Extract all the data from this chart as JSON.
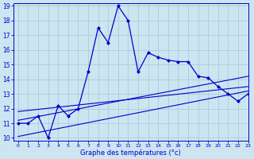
{
  "xlabel": "Graphe des températures (°c)",
  "bg_color": "#cce5f0",
  "grid_color": "#aaccdd",
  "line_color": "#0000cc",
  "x_hours": [
    0,
    1,
    2,
    3,
    4,
    5,
    6,
    7,
    8,
    9,
    10,
    11,
    12,
    13,
    14,
    15,
    16,
    17,
    18,
    19,
    20,
    21,
    22,
    23
  ],
  "temp_main": [
    11,
    11,
    11.5,
    10,
    12.2,
    11.5,
    12,
    14.5,
    17.5,
    16.5,
    19,
    18,
    14.5,
    15.8,
    15.5,
    15.3,
    15.2,
    15.2,
    14.2,
    14.1,
    13.5,
    13,
    12.5,
    13
  ],
  "trend1_x": [
    0,
    23
  ],
  "trend1_y": [
    11.8,
    13.5
  ],
  "trend2_x": [
    0,
    23
  ],
  "trend2_y": [
    11.2,
    14.2
  ],
  "trend3_x": [
    0,
    23
  ],
  "trend3_y": [
    10.1,
    13.2
  ],
  "ylim": [
    9.8,
    19.2
  ],
  "xlim": [
    -0.5,
    23
  ],
  "yticks": [
    10,
    11,
    12,
    13,
    14,
    15,
    16,
    17,
    18,
    19
  ],
  "xticks": [
    0,
    1,
    2,
    3,
    4,
    5,
    6,
    7,
    8,
    9,
    10,
    11,
    12,
    13,
    14,
    15,
    16,
    17,
    18,
    19,
    20,
    21,
    22,
    23
  ]
}
